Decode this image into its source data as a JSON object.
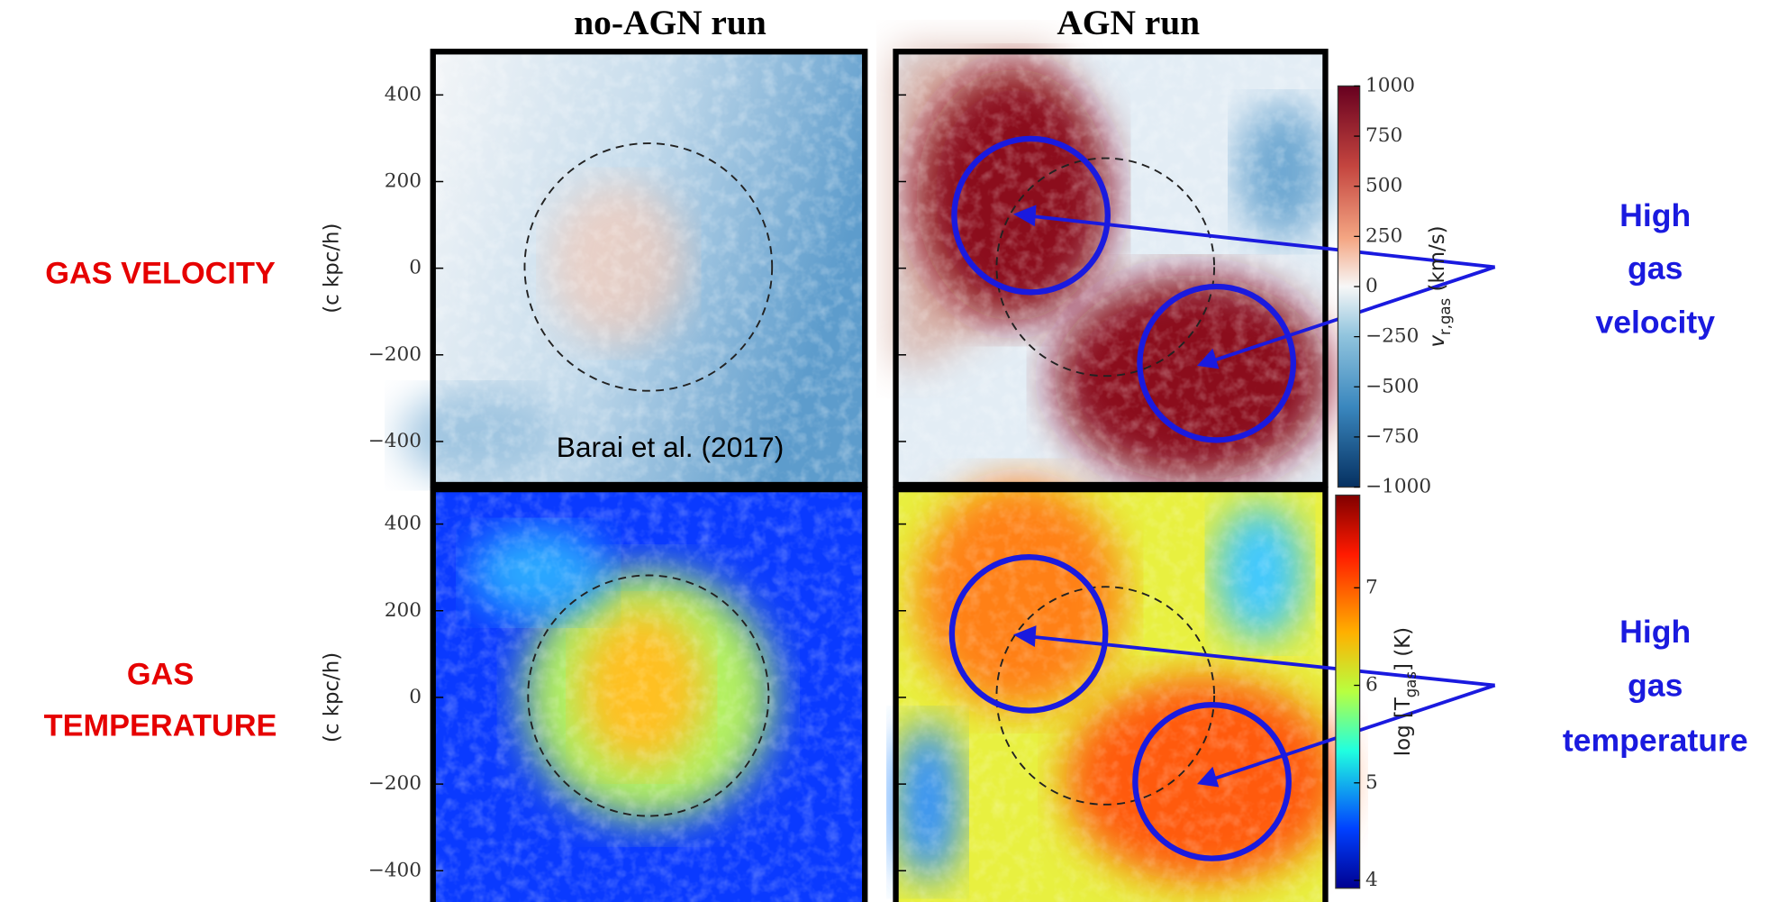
{
  "columns": {
    "left": "no-AGN run",
    "right": "AGN run"
  },
  "row_labels": {
    "velocity": [
      "GAS VELOCITY"
    ],
    "temperature": [
      "GAS",
      "TEMPERATURE"
    ]
  },
  "panels": [
    {
      "ylabel": "(c kpc/h)",
      "ylim": [
        -500,
        500
      ],
      "yticks": [
        {
          "value": -400,
          "label": "−400"
        },
        {
          "value": -200,
          "label": "−200"
        },
        0,
        200,
        400
      ]
    },
    {
      "ylabel": "(c kpc/h)",
      "ylim": [
        -480,
        480
      ],
      "yticks": [
        {
          "value": -400,
          "label": "−400"
        },
        {
          "value": -200,
          "label": "−200"
        },
        0,
        200,
        400
      ]
    }
  ],
  "colorbars": [
    {
      "symbol": "v",
      "subscript": "r,gas",
      "unit": " (km/s)",
      "ylim": [
        -1000,
        1000
      ],
      "yticks": [
        {
          "value": -1000,
          "label": "−1000"
        },
        {
          "value": -750,
          "label": "−750"
        },
        {
          "value": -500,
          "label": "−500"
        },
        {
          "value": -250,
          "label": "−250"
        },
        0,
        250,
        500,
        750,
        1000
      ]
    },
    {
      "symbol": "log [T",
      "subscript": "gas",
      "unit": "] (K)",
      "ylim": [
        3.92,
        7.95
      ],
      "yticks": [
        4,
        5,
        6,
        7
      ]
    }
  ],
  "credit": "Barai et al. (2017)",
  "annotations": [
    [
      "High",
      "gas",
      "velocity"
    ],
    [
      "High",
      "gas",
      "temperature"
    ]
  ]
}
